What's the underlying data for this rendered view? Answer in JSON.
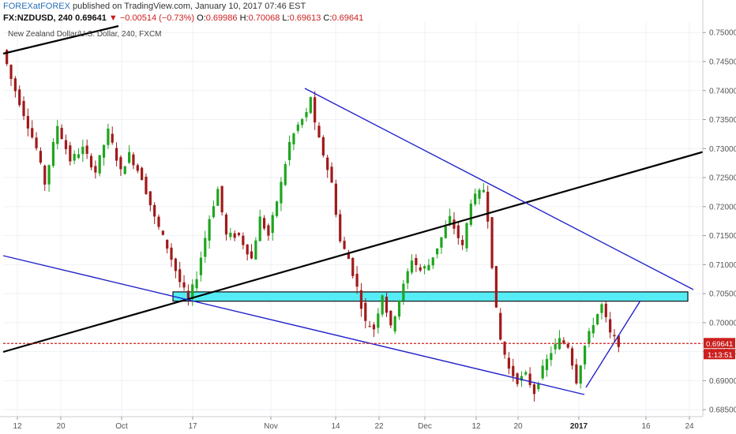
{
  "header": {
    "author": "FOREXatFOREX",
    "published": "published on TradingView.com, January 10, 2017 07:46 EST",
    "symbol": "FX:NZDUSD, 240",
    "last": "0.69641",
    "change_arrow": "▼",
    "change": "−0.00514 (−0.73%)",
    "o_label": "O:",
    "o_value": "0.69986",
    "h_label": "H:",
    "h_value": "0.70068",
    "l_label": "L:",
    "l_value": "0.69613",
    "c_label": "C:",
    "c_value": "0.69641"
  },
  "chart_data": {
    "type": "candlestick",
    "title": "New Zealand Dollar/U.S. Dollar, 240, FXCM",
    "x_ticks": [
      "12",
      "20",
      "Oct",
      "17",
      "Nov",
      "14",
      "22",
      "Dec",
      "12",
      "20",
      "2017",
      "16",
      "24"
    ],
    "y_ticks": [
      "0.75000",
      "0.74500",
      "0.74000",
      "0.73500",
      "0.73000",
      "0.72500",
      "0.72000",
      "0.71500",
      "0.71000",
      "0.70500",
      "0.70000",
      "0.69500",
      "0.69000",
      "0.68500"
    ],
    "ylim": [
      0.6838,
      0.7518
    ],
    "last_price": "0.69641",
    "countdown": "1:13:51",
    "price_path": [
      [
        0,
        0.747
      ],
      [
        2,
        0.742
      ],
      [
        5,
        0.736
      ],
      [
        8,
        0.73
      ],
      [
        10,
        0.724
      ],
      [
        13,
        0.734
      ],
      [
        16,
        0.728
      ],
      [
        19,
        0.73
      ],
      [
        22,
        0.726
      ],
      [
        25,
        0.733
      ],
      [
        28,
        0.726
      ],
      [
        30,
        0.729
      ],
      [
        33,
        0.725
      ],
      [
        36,
        0.718
      ],
      [
        39,
        0.713
      ],
      [
        42,
        0.707
      ],
      [
        44,
        0.704
      ],
      [
        46,
        0.708
      ],
      [
        49,
        0.718
      ],
      [
        51,
        0.723
      ],
      [
        53,
        0.715
      ],
      [
        56,
        0.715
      ],
      [
        59,
        0.711
      ],
      [
        61,
        0.718
      ],
      [
        63,
        0.715
      ],
      [
        66,
        0.724
      ],
      [
        68,
        0.731
      ],
      [
        70,
        0.734
      ],
      [
        72,
        0.736
      ],
      [
        73,
        0.739
      ],
      [
        74,
        0.734
      ],
      [
        76,
        0.729
      ],
      [
        78,
        0.724
      ],
      [
        80,
        0.714
      ],
      [
        82,
        0.711
      ],
      [
        84,
        0.706
      ],
      [
        86,
        0.7
      ],
      [
        88,
        0.699
      ],
      [
        90,
        0.705
      ],
      [
        92,
        0.699
      ],
      [
        94,
        0.704
      ],
      [
        97,
        0.711
      ],
      [
        99,
        0.709
      ],
      [
        101,
        0.71
      ],
      [
        103,
        0.713
      ],
      [
        106,
        0.718
      ],
      [
        109,
        0.713
      ],
      [
        111,
        0.721
      ],
      [
        114,
        0.723
      ],
      [
        115,
        0.718
      ],
      [
        116,
        0.71
      ],
      [
        117,
        0.702
      ],
      [
        118,
        0.697
      ],
      [
        120,
        0.692
      ],
      [
        122,
        0.69
      ],
      [
        124,
        0.691
      ],
      [
        126,
        0.688
      ],
      [
        128,
        0.692
      ],
      [
        130,
        0.695
      ],
      [
        132,
        0.697
      ],
      [
        134,
        0.696
      ],
      [
        136,
        0.69
      ],
      [
        138,
        0.696
      ],
      [
        140,
        0.7
      ],
      [
        142,
        0.703
      ],
      [
        144,
        0.698
      ],
      [
        146,
        0.6964
      ]
    ],
    "annotations": [
      {
        "kind": "zone",
        "color": "#55ecf5",
        "price_top": 0.7053,
        "price_bottom": 0.7037
      },
      {
        "kind": "line",
        "color": "#000000",
        "name": "upper-left-trendline"
      },
      {
        "kind": "line",
        "color": "#000000",
        "name": "long-rising-trendline"
      },
      {
        "kind": "line",
        "color": "#2222cc",
        "name": "descending-resistance-line"
      },
      {
        "kind": "line",
        "color": "#2222cc",
        "name": "descending-support-line"
      },
      {
        "kind": "line",
        "color": "#2222cc",
        "name": "short-rising-trendline"
      },
      {
        "kind": "hline",
        "color": "#cc1f1f",
        "dashed": true,
        "price": 0.69641
      }
    ],
    "colors": {
      "up": "#1fa51f",
      "down": "#a01a1a",
      "grid": "#eef1f5",
      "axis": "#cccccc"
    }
  }
}
